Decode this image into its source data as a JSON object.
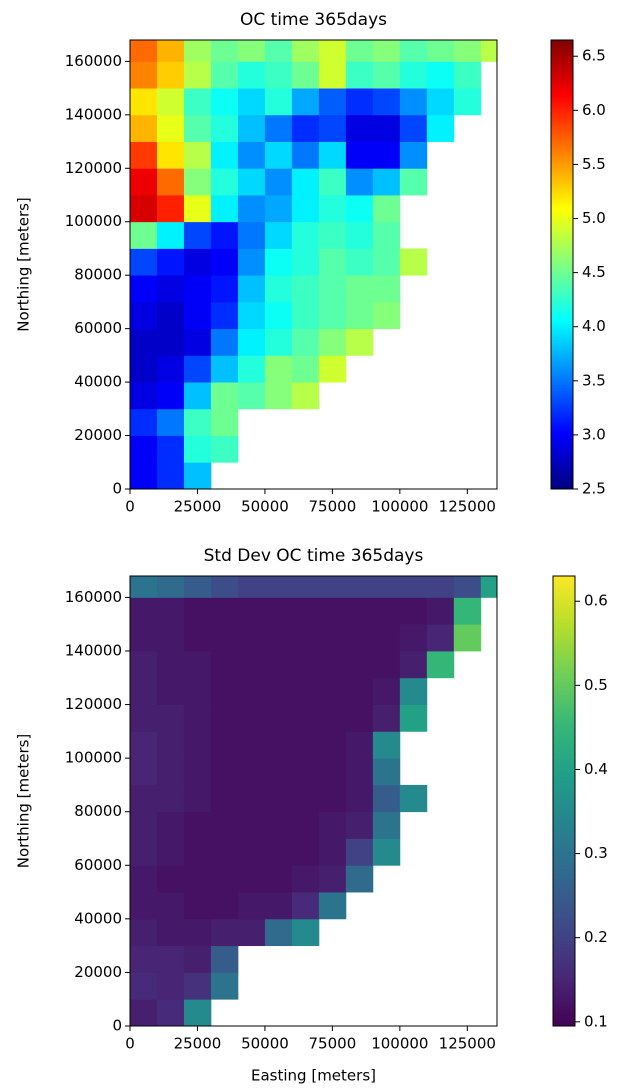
{
  "chart_data": [
    {
      "type": "heatmap",
      "title": "OC time 365days",
      "ylabel": "Northing [meters]",
      "cmap": "jet",
      "xbins": [
        0,
        10000,
        20000,
        30000,
        40000,
        50000,
        60000,
        70000,
        80000,
        90000,
        100000,
        110000,
        120000,
        130000,
        140000
      ],
      "ybins": [
        0,
        10000,
        20000,
        30000,
        40000,
        50000,
        60000,
        70000,
        80000,
        90000,
        100000,
        110000,
        120000,
        130000,
        140000,
        150000,
        160000,
        170000
      ],
      "z": [
        [
          3.0,
          3.2,
          3.8
        ],
        [
          3.0,
          3.2,
          4.2,
          4.3
        ],
        [
          3.2,
          3.5,
          4.3,
          4.5
        ],
        [
          2.9,
          3.0,
          3.8,
          4.5,
          4.4,
          4.6,
          4.8
        ],
        [
          2.8,
          2.9,
          3.3,
          3.8,
          4.2,
          4.6,
          4.5,
          4.9
        ],
        [
          2.8,
          2.8,
          2.9,
          3.5,
          4.0,
          4.2,
          4.4,
          4.6,
          4.8
        ],
        [
          2.9,
          2.8,
          3.0,
          3.2,
          3.9,
          4.1,
          4.3,
          4.4,
          4.5,
          4.6
        ],
        [
          3.0,
          2.9,
          3.0,
          3.1,
          3.8,
          4.2,
          4.3,
          4.4,
          4.5,
          4.5
        ],
        [
          3.3,
          3.1,
          2.9,
          3.0,
          3.6,
          4.1,
          4.2,
          4.4,
          4.3,
          4.4,
          4.8
        ],
        [
          4.5,
          4.0,
          3.3,
          3.1,
          3.5,
          3.9,
          4.2,
          4.3,
          4.2,
          4.4
        ],
        [
          6.3,
          6.0,
          5.0,
          4.0,
          3.6,
          3.7,
          4.0,
          4.2,
          4.1,
          4.5
        ],
        [
          6.2,
          5.7,
          4.6,
          4.2,
          3.9,
          3.6,
          4.0,
          4.3,
          3.6,
          3.8,
          4.4
        ],
        [
          5.9,
          5.2,
          4.8,
          4.0,
          3.6,
          3.9,
          3.5,
          3.9,
          3.0,
          3.0,
          3.6
        ],
        [
          5.4,
          5.0,
          4.4,
          4.2,
          3.8,
          3.5,
          3.2,
          3.3,
          2.9,
          2.9,
          3.3,
          4.0
        ],
        [
          5.2,
          4.9,
          4.3,
          4.1,
          3.9,
          4.2,
          3.7,
          3.4,
          3.2,
          3.3,
          3.6,
          3.9,
          4.2
        ],
        [
          5.6,
          5.3,
          4.8,
          4.4,
          4.2,
          4.3,
          4.5,
          4.9,
          4.3,
          4.4,
          4.2,
          4.1,
          4.3
        ],
        [
          5.7,
          5.4,
          4.7,
          4.5,
          4.6,
          4.4,
          4.7,
          4.9,
          4.5,
          4.6,
          4.4,
          4.5,
          4.6,
          4.8
        ]
      ],
      "xlim": [
        0,
        136000
      ],
      "ylim": [
        0,
        168000
      ],
      "xticks": [
        0,
        25000,
        50000,
        75000,
        100000,
        125000
      ],
      "yticks": [
        0,
        20000,
        40000,
        60000,
        80000,
        100000,
        120000,
        140000,
        160000
      ],
      "clim": [
        2.5,
        6.65
      ],
      "cticks": [
        2.5,
        {
          "value": 3,
          "label": "3.0"
        },
        3.5,
        {
          "value": 4,
          "label": "4.0"
        },
        4.5,
        {
          "value": 5,
          "label": "5.0"
        },
        5.5,
        {
          "value": 6,
          "label": "6.0"
        },
        6.5
      ]
    },
    {
      "type": "heatmap",
      "title": "Std Dev OC time 365days",
      "xlabel": "Easting [meters]",
      "ylabel": "Northing [meters]",
      "cmap": "viridis",
      "xbins": [
        0,
        10000,
        20000,
        30000,
        40000,
        50000,
        60000,
        70000,
        80000,
        90000,
        100000,
        110000,
        120000,
        130000,
        140000
      ],
      "ybins": [
        0,
        10000,
        20000,
        30000,
        40000,
        50000,
        60000,
        70000,
        80000,
        90000,
        100000,
        110000,
        120000,
        130000,
        140000,
        150000,
        160000,
        170000
      ],
      "z": [
        [
          0.14,
          0.16,
          0.35
        ],
        [
          0.16,
          0.15,
          0.17,
          0.3
        ],
        [
          0.15,
          0.15,
          0.14,
          0.25
        ],
        [
          0.14,
          0.13,
          0.13,
          0.14,
          0.14,
          0.28,
          0.35
        ],
        [
          0.13,
          0.13,
          0.12,
          0.12,
          0.13,
          0.13,
          0.16,
          0.3
        ],
        [
          0.13,
          0.12,
          0.12,
          0.12,
          0.12,
          0.12,
          0.13,
          0.14,
          0.28
        ],
        [
          0.14,
          0.13,
          0.12,
          0.12,
          0.12,
          0.12,
          0.12,
          0.13,
          0.2,
          0.35
        ],
        [
          0.14,
          0.13,
          0.12,
          0.12,
          0.12,
          0.12,
          0.12,
          0.13,
          0.14,
          0.3
        ],
        [
          0.14,
          0.14,
          0.13,
          0.12,
          0.12,
          0.12,
          0.12,
          0.12,
          0.13,
          0.25,
          0.35
        ],
        [
          0.15,
          0.14,
          0.13,
          0.12,
          0.12,
          0.12,
          0.12,
          0.12,
          0.13,
          0.3
        ],
        [
          0.15,
          0.14,
          0.13,
          0.12,
          0.12,
          0.12,
          0.12,
          0.12,
          0.13,
          0.35
        ],
        [
          0.14,
          0.14,
          0.13,
          0.12,
          0.12,
          0.12,
          0.12,
          0.12,
          0.12,
          0.14,
          0.4
        ],
        [
          0.14,
          0.13,
          0.13,
          0.12,
          0.12,
          0.12,
          0.12,
          0.12,
          0.12,
          0.13,
          0.35
        ],
        [
          0.14,
          0.13,
          0.13,
          0.12,
          0.12,
          0.12,
          0.12,
          0.12,
          0.12,
          0.12,
          0.14,
          0.45
        ],
        [
          0.13,
          0.13,
          0.12,
          0.12,
          0.12,
          0.12,
          0.12,
          0.12,
          0.12,
          0.12,
          0.13,
          0.15,
          0.5
        ],
        [
          0.13,
          0.13,
          0.12,
          0.12,
          0.12,
          0.12,
          0.12,
          0.12,
          0.12,
          0.12,
          0.12,
          0.13,
          0.45
        ],
        [
          0.3,
          0.28,
          0.25,
          0.22,
          0.2,
          0.2,
          0.2,
          0.2,
          0.2,
          0.2,
          0.2,
          0.2,
          0.22,
          0.4
        ]
      ],
      "xlim": [
        0,
        136000
      ],
      "ylim": [
        0,
        168000
      ],
      "xticks": [
        0,
        25000,
        50000,
        75000,
        100000,
        125000
      ],
      "yticks": [
        0,
        20000,
        40000,
        60000,
        80000,
        100000,
        120000,
        140000,
        160000
      ],
      "clim": [
        0.095,
        0.63
      ],
      "cticks": [
        0.1,
        0.2,
        0.3,
        0.4,
        0.5,
        0.6
      ]
    }
  ]
}
